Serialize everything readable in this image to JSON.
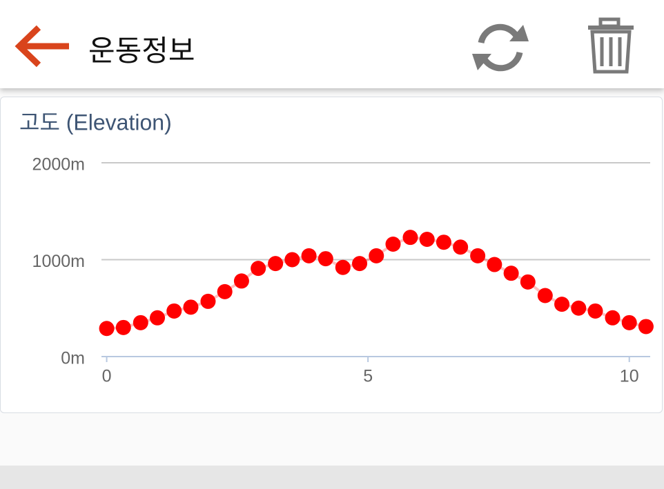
{
  "header": {
    "title": "운동정보"
  },
  "chart_data": {
    "type": "scatter",
    "title": "고도 (Elevation)",
    "x": [
      0,
      0.32,
      0.65,
      0.97,
      1.29,
      1.61,
      1.94,
      2.26,
      2.58,
      2.9,
      3.23,
      3.55,
      3.87,
      4.19,
      4.52,
      4.84,
      5.16,
      5.48,
      5.81,
      6.13,
      6.45,
      6.77,
      7.1,
      7.42,
      7.74,
      8.06,
      8.39,
      8.71,
      9.03,
      9.35,
      9.68,
      10,
      10.32
    ],
    "series": [
      {
        "color": "#ff0000",
        "values": [
          290,
          300,
          350,
          400,
          470,
          510,
          570,
          670,
          780,
          910,
          960,
          1000,
          1040,
          1010,
          920,
          960,
          1040,
          1160,
          1230,
          1210,
          1180,
          1130,
          1040,
          950,
          860,
          770,
          630,
          540,
          500,
          470,
          400,
          350,
          310
        ]
      }
    ],
    "xlim": [
      -0.1,
      10.4
    ],
    "xticks": [
      0,
      5,
      10
    ],
    "ylim": [
      0,
      2000
    ],
    "yticks": [
      {
        "value": 0,
        "label": "0m"
      },
      {
        "value": 1000,
        "label": "1000m"
      },
      {
        "value": 2000,
        "label": "2000m"
      }
    ],
    "grid": true
  }
}
